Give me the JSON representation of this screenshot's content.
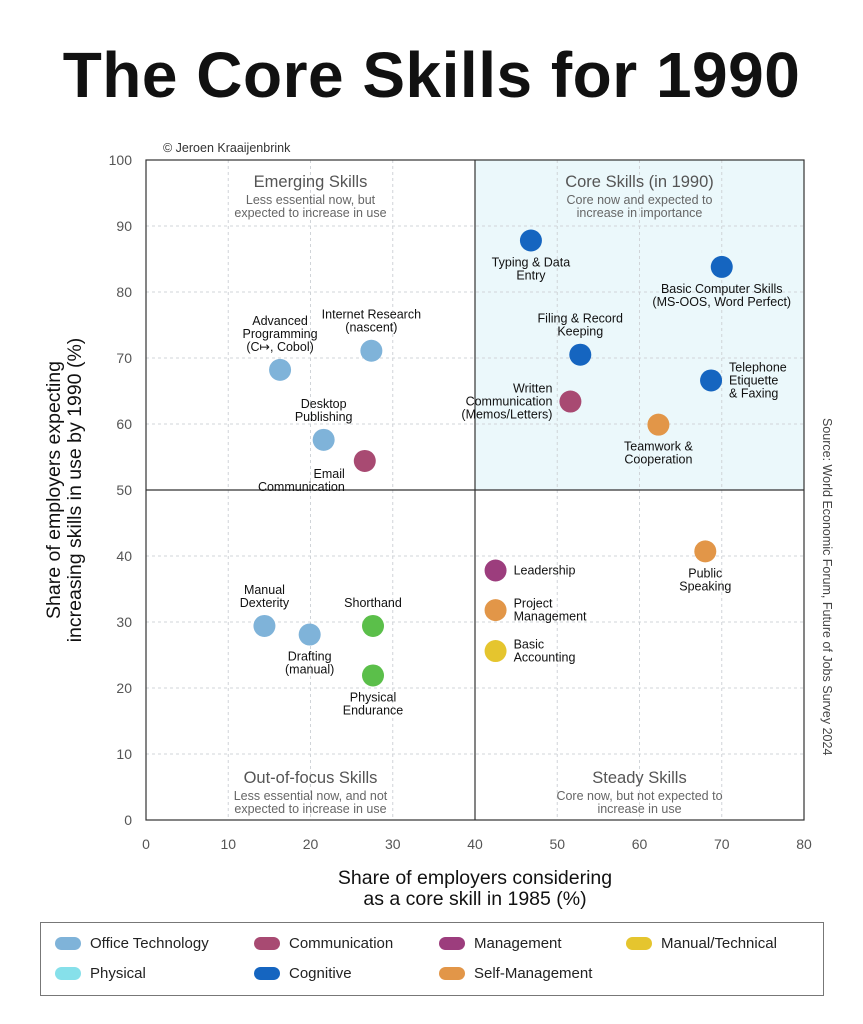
{
  "page": {
    "title": "The Core Skills for 1990",
    "credit": "© Jeroen Kraaijenbrink",
    "source": "Source: World Economic Forum, Future of Jobs Survey 2024"
  },
  "colors": {
    "office_technology": "#7fb3d9",
    "communication": "#a84a72",
    "management": "#9c3d7d",
    "manual_technical": "#e5c52e",
    "physical": "#5bbf4a",
    "physical_legend": "#86e0ea",
    "cognitive": "#1565c0",
    "self_management": "#e29648",
    "core_quadrant_fill": "#ebf8fb"
  },
  "chart_data": {
    "type": "scatter",
    "title": "The Core Skills for 1990",
    "xlabel": [
      "Share of employers considering",
      "as a core skill in 1985 (%)"
    ],
    "ylabel": [
      "Share of employers expecting",
      "increasing skills in use by 1990 (%)"
    ],
    "xlim": [
      0,
      80
    ],
    "ylim": [
      0,
      100
    ],
    "x_ticks": [
      0,
      10,
      20,
      30,
      40,
      50,
      60,
      70,
      80
    ],
    "y_ticks": [
      0,
      10,
      20,
      30,
      40,
      50,
      60,
      70,
      80,
      90,
      100
    ],
    "divider_x": 40,
    "divider_y": 50,
    "quadrants": [
      {
        "id": "emerging",
        "title": "Emerging Skills",
        "subtitle": [
          "Less essential now, but",
          "expected to increase in use"
        ],
        "position": "top-left"
      },
      {
        "id": "core",
        "title": "Core Skills (in 1990)",
        "subtitle": [
          "Core now and expected to",
          "increase in importance"
        ],
        "position": "top-right"
      },
      {
        "id": "out_of_focus",
        "title": "Out-of-focus Skills",
        "subtitle": [
          "Less essential now, and not",
          "expected to increase in use"
        ],
        "position": "bottom-left"
      },
      {
        "id": "steady",
        "title": "Steady Skills",
        "subtitle": [
          "Core now, but not expected to",
          "increase in use"
        ],
        "position": "bottom-right"
      }
    ],
    "points": [
      {
        "label": [
          "Typing & Data",
          "Entry"
        ],
        "x": 46.8,
        "y": 87.8,
        "category": "cognitive",
        "label_pos": "below"
      },
      {
        "label": [
          "Basic Computer Skills",
          "(MS-OOS, Word Perfect)"
        ],
        "x": 70.0,
        "y": 83.8,
        "category": "cognitive",
        "label_pos": "below"
      },
      {
        "label": [
          "Filing & Record",
          "Keeping"
        ],
        "x": 52.8,
        "y": 70.5,
        "category": "cognitive",
        "label_pos": "above"
      },
      {
        "label": [
          "Telephone",
          "Etiquette",
          "& Faxing"
        ],
        "x": 68.7,
        "y": 66.6,
        "category": "cognitive",
        "label_pos": "right"
      },
      {
        "label": [
          "Written",
          "Communication",
          "(Memos/Letters)"
        ],
        "x": 51.6,
        "y": 63.4,
        "category": "communication",
        "label_pos": "left"
      },
      {
        "label": [
          "Teamwork &",
          "Cooperation"
        ],
        "x": 62.3,
        "y": 59.9,
        "category": "self_management",
        "label_pos": "below"
      },
      {
        "label": [
          "Advanced",
          "Programming",
          "(C↦, Cobol)"
        ],
        "x": 16.3,
        "y": 68.2,
        "category": "office_technology",
        "label_pos": "above"
      },
      {
        "label": [
          "Internet Research",
          "(nascent)"
        ],
        "x": 27.4,
        "y": 71.1,
        "category": "office_technology",
        "label_pos": "above"
      },
      {
        "label": [
          "Desktop",
          "Publishing"
        ],
        "x": 21.6,
        "y": 57.6,
        "category": "office_technology",
        "label_pos": "above"
      },
      {
        "label": [
          "Email",
          "Communication"
        ],
        "x": 26.6,
        "y": 54.4,
        "category": "communication",
        "label_pos": "below-left"
      },
      {
        "label": [
          "Leadership"
        ],
        "x": 42.5,
        "y": 37.8,
        "category": "management",
        "label_pos": "right"
      },
      {
        "label": [
          "Project",
          "Management"
        ],
        "x": 42.5,
        "y": 31.8,
        "category": "self_management",
        "label_pos": "right"
      },
      {
        "label": [
          "Basic",
          "Accounting"
        ],
        "x": 42.5,
        "y": 25.6,
        "category": "manual_technical",
        "label_pos": "right"
      },
      {
        "label": [
          "Public",
          "Speaking"
        ],
        "x": 68.0,
        "y": 40.7,
        "category": "self_management",
        "label_pos": "below"
      },
      {
        "label": [
          "Manual",
          "Dexterity"
        ],
        "x": 14.4,
        "y": 29.4,
        "category": "office_technology",
        "label_pos": "above"
      },
      {
        "label": [
          "Drafting",
          "(manual)"
        ],
        "x": 19.9,
        "y": 28.1,
        "category": "office_technology",
        "label_pos": "below"
      },
      {
        "label": [
          "Shorthand"
        ],
        "x": 27.6,
        "y": 29.4,
        "category": "physical",
        "label_pos": "above"
      },
      {
        "label": [
          "Physical",
          "Endurance"
        ],
        "x": 27.6,
        "y": 21.9,
        "category": "physical",
        "label_pos": "below"
      }
    ],
    "legend": [
      {
        "label": "Office Technology",
        "color_key": "office_technology"
      },
      {
        "label": "Communication",
        "color_key": "communication"
      },
      {
        "label": "Management",
        "color_key": "management"
      },
      {
        "label": "Manual/Technical",
        "color_key": "manual_technical"
      },
      {
        "label": "Physical",
        "color_key": "physical_legend"
      },
      {
        "label": "Cognitive",
        "color_key": "cognitive"
      },
      {
        "label": "Self-Management",
        "color_key": "self_management"
      }
    ]
  }
}
